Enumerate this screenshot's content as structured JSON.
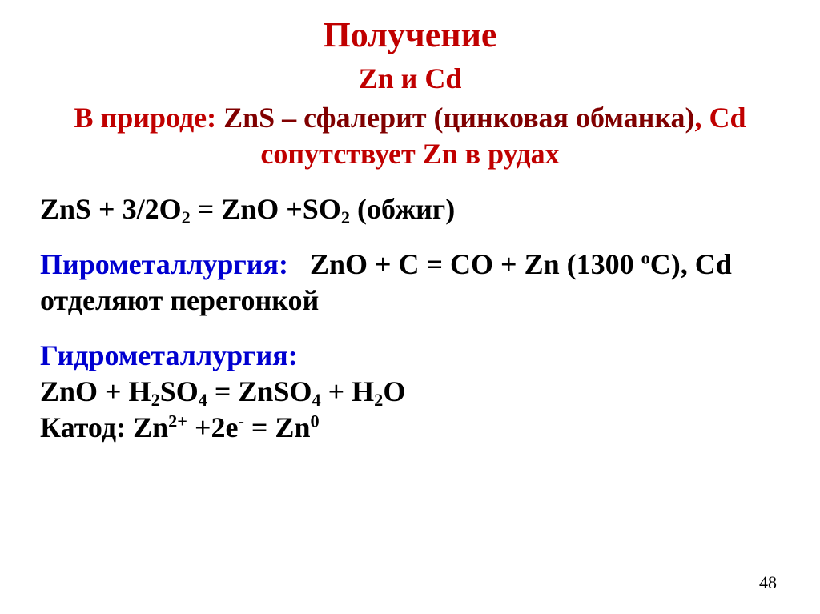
{
  "title": {
    "text": "Получение",
    "color": "#c00000",
    "fontsize": 44
  },
  "subtitle": {
    "text": "Zn и Cd",
    "color": "#c00000",
    "fontsize": 36
  },
  "nature": {
    "prefix": "В природе: ",
    "highlight": "ZnS – сфалерит (цинковая обманка)",
    "suffix": ", Cd сопутствует Zn в рудах",
    "color_prefix": "#c00000",
    "color_highlight": "#800000",
    "color_suffix": "#c00000",
    "fontsize": 36
  },
  "roast": {
    "formula_html": "ZnS + 3/2O<sub>2</sub> = ZnO +SO<sub>2</sub> ",
    "paren": "(обжиг)",
    "color": "#000000",
    "fontsize": 36
  },
  "pyro": {
    "label": "Пирометаллургия:",
    "label_color": "#0000d0",
    "formula_html": "ZnO + C = CO + Zn (1300 <sup>o</sup>C)",
    "suffix": ", Cd отделяют перегонкой",
    "color": "#000000",
    "fontsize": 36
  },
  "hydro": {
    "label": "Гидрометаллургия:",
    "label_color": "#0000d0",
    "line1_html": "ZnO + H<sub>2</sub>SO<sub>4</sub> = ZnSO<sub>4</sub> + H<sub>2</sub>O",
    "line2_html": "Катод: Zn<sup>2+</sup> +2e<sup>-</sup> = Zn<sup>0</sup>",
    "color": "#000000",
    "fontsize": 36
  },
  "pagenum": {
    "text": "48",
    "color": "#000000",
    "fontsize": 22
  }
}
